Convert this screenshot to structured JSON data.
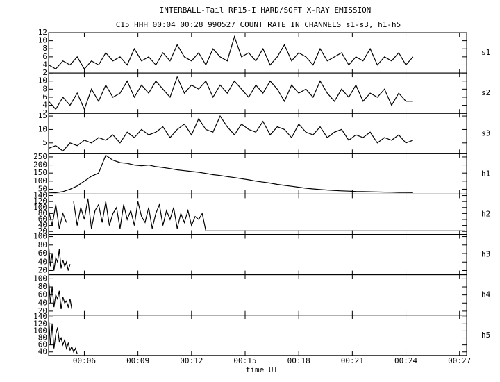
{
  "chart_data": {
    "type": "line",
    "title": "INTERBALL-Tail RF15-I HARD/SOFT X-RAY EMISSION",
    "subtitle": "C15 HHH 00:04 00:28 990527  COUNT RATE IN CHANNELS s1-s3, h1-h5",
    "xlabel": "time UT",
    "color": "#000000",
    "xlim": [
      4,
      27.4
    ],
    "xticks": [
      {
        "value": 6,
        "label": "00:06"
      },
      {
        "value": 9,
        "label": "00:09"
      },
      {
        "value": 12,
        "label": "00:12"
      },
      {
        "value": 15,
        "label": "00:15"
      },
      {
        "value": 18,
        "label": "00:18"
      },
      {
        "value": 21,
        "label": "00:21"
      },
      {
        "value": 24,
        "label": "00:24"
      },
      {
        "value": 27,
        "label": "00:27"
      }
    ],
    "panels": [
      {
        "name": "s1",
        "ylim": [
          2,
          12
        ],
        "yticks": [
          2,
          4,
          6,
          8,
          10,
          12
        ],
        "x": [
          4.0,
          4.4,
          4.8,
          5.2,
          5.6,
          6.0,
          6.4,
          6.8,
          7.2,
          7.6,
          8.0,
          8.4,
          8.8,
          9.2,
          9.6,
          10.0,
          10.4,
          10.8,
          11.2,
          11.6,
          12.0,
          12.4,
          12.8,
          13.2,
          13.6,
          14.0,
          14.4,
          14.8,
          15.2,
          15.6,
          16.0,
          16.4,
          16.8,
          17.2,
          17.6,
          18.0,
          18.4,
          18.8,
          19.2,
          19.6,
          20.0,
          20.4,
          20.8,
          21.2,
          21.6,
          22.0,
          22.4,
          22.8,
          23.2,
          23.6,
          24.0,
          24.4
        ],
        "values": [
          4,
          3,
          5,
          4,
          6,
          3,
          5,
          4,
          7,
          5,
          6,
          4,
          8,
          5,
          6,
          4,
          7,
          5,
          9,
          6,
          5,
          7,
          4,
          8,
          6,
          5,
          11,
          6,
          7,
          5,
          8,
          4,
          6,
          9,
          5,
          7,
          6,
          4,
          8,
          5,
          6,
          7,
          4,
          6,
          5,
          8,
          4,
          6,
          5,
          7,
          4,
          6
        ]
      },
      {
        "name": "s2",
        "ylim": [
          2,
          12
        ],
        "yticks": [
          2,
          4,
          6,
          8,
          10
        ],
        "x": [
          4.0,
          4.4,
          4.8,
          5.2,
          5.6,
          6.0,
          6.4,
          6.8,
          7.2,
          7.6,
          8.0,
          8.4,
          8.8,
          9.2,
          9.6,
          10.0,
          10.4,
          10.8,
          11.2,
          11.6,
          12.0,
          12.4,
          12.8,
          13.2,
          13.6,
          14.0,
          14.4,
          14.8,
          15.2,
          15.6,
          16.0,
          16.4,
          16.8,
          17.2,
          17.6,
          18.0,
          18.4,
          18.8,
          19.2,
          19.6,
          20.0,
          20.4,
          20.8,
          21.2,
          21.6,
          22.0,
          22.4,
          22.8,
          23.2,
          23.6,
          24.0,
          24.4
        ],
        "values": [
          5,
          3,
          6,
          4,
          7,
          3,
          8,
          5,
          9,
          6,
          7,
          10,
          6,
          9,
          7,
          10,
          8,
          6,
          11,
          7,
          9,
          8,
          10,
          6,
          9,
          7,
          10,
          8,
          6,
          9,
          7,
          10,
          8,
          5,
          9,
          7,
          8,
          6,
          10,
          7,
          5,
          8,
          6,
          9,
          5,
          7,
          6,
          8,
          4,
          7,
          5,
          5
        ]
      },
      {
        "name": "s3",
        "ylim": [
          1,
          16
        ],
        "yticks": [
          5,
          10,
          15
        ],
        "x": [
          4.0,
          4.4,
          4.8,
          5.2,
          5.6,
          6.0,
          6.4,
          6.8,
          7.2,
          7.6,
          8.0,
          8.4,
          8.8,
          9.2,
          9.6,
          10.0,
          10.4,
          10.8,
          11.2,
          11.6,
          12.0,
          12.4,
          12.8,
          13.2,
          13.6,
          14.0,
          14.4,
          14.8,
          15.2,
          15.6,
          16.0,
          16.4,
          16.8,
          17.2,
          17.6,
          18.0,
          18.4,
          18.8,
          19.2,
          19.6,
          20.0,
          20.4,
          20.8,
          21.2,
          21.6,
          22.0,
          22.4,
          22.8,
          23.2,
          23.6,
          24.0,
          24.4
        ],
        "values": [
          3,
          4,
          2,
          5,
          4,
          6,
          5,
          7,
          6,
          8,
          5,
          9,
          7,
          10,
          8,
          9,
          11,
          7,
          10,
          12,
          8,
          14,
          10,
          9,
          15,
          11,
          8,
          12,
          10,
          9,
          13,
          8,
          11,
          10,
          7,
          12,
          9,
          8,
          11,
          7,
          9,
          10,
          6,
          8,
          7,
          9,
          5,
          7,
          6,
          8,
          5,
          6
        ]
      },
      {
        "name": "h1",
        "ylim": [
          20,
          270
        ],
        "yticks": [
          50,
          100,
          150,
          200,
          250
        ],
        "x": [
          4.0,
          4.4,
          4.8,
          5.2,
          5.6,
          6.0,
          6.4,
          6.8,
          7.2,
          7.6,
          8.0,
          8.4,
          8.8,
          9.2,
          9.6,
          10.0,
          10.4,
          10.8,
          11.2,
          11.6,
          12.0,
          12.4,
          12.8,
          13.2,
          13.6,
          14.0,
          14.4,
          14.8,
          15.2,
          15.6,
          16.0,
          16.4,
          16.8,
          17.2,
          17.6,
          18.0,
          18.4,
          18.8,
          19.2,
          19.6,
          20.0,
          20.4,
          20.8,
          21.2,
          21.6,
          22.0,
          22.4,
          22.8,
          23.2,
          23.6,
          24.0,
          24.4
        ],
        "values": [
          30,
          28,
          35,
          50,
          70,
          100,
          130,
          150,
          260,
          230,
          215,
          210,
          200,
          195,
          200,
          190,
          185,
          178,
          170,
          165,
          160,
          155,
          148,
          140,
          135,
          128,
          122,
          115,
          108,
          100,
          94,
          88,
          80,
          74,
          68,
          62,
          56,
          52,
          48,
          45,
          42,
          40,
          38,
          36,
          35,
          34,
          33,
          32,
          31,
          30,
          30,
          29
        ]
      },
      {
        "name": "h2",
        "ylim": [
          10,
          145
        ],
        "yticks": [
          20,
          40,
          60,
          80,
          100,
          120,
          140
        ],
        "x": [
          4.0,
          4.2,
          4.4,
          4.6,
          4.8,
          5.0,
          5.2,
          5.4,
          5.6,
          5.8,
          6.0,
          6.2,
          6.4,
          6.6,
          6.8,
          7.0,
          7.2,
          7.4,
          7.6,
          7.8,
          8.0,
          8.2,
          8.4,
          8.6,
          8.8,
          9.0,
          9.2,
          9.4,
          9.6,
          9.8,
          10.0,
          10.2,
          10.4,
          10.6,
          10.8,
          11.0,
          11.2,
          11.4,
          11.6,
          11.8,
          12.0,
          12.2,
          12.4,
          12.6,
          12.8,
          27.3
        ],
        "values": [
          90,
          40,
          110,
          30,
          80,
          50,
          null,
          120,
          40,
          100,
          60,
          130,
          30,
          90,
          110,
          50,
          120,
          40,
          80,
          100,
          30,
          110,
          60,
          90,
          40,
          120,
          70,
          50,
          100,
          30,
          80,
          110,
          40,
          90,
          60,
          100,
          30,
          80,
          50,
          90,
          40,
          70,
          60,
          80,
          22,
          22
        ]
      },
      {
        "name": "h3",
        "ylim": [
          10,
          105
        ],
        "yticks": [
          20,
          40,
          60,
          80,
          100
        ],
        "x": [
          4.0,
          4.1,
          4.2,
          4.3,
          4.4,
          4.5,
          4.6,
          4.7,
          4.8,
          4.9,
          5.0,
          5.1,
          5.2
        ],
        "values": [
          80,
          30,
          60,
          20,
          50,
          40,
          70,
          25,
          45,
          30,
          40,
          20,
          35
        ]
      },
      {
        "name": "h4",
        "ylim": [
          10,
          110
        ],
        "yticks": [
          20,
          40,
          60,
          80,
          100
        ],
        "x": [
          4.0,
          4.1,
          4.2,
          4.3,
          4.4,
          4.5,
          4.6,
          4.7,
          4.8,
          4.9,
          5.0,
          5.1,
          5.2,
          5.3
        ],
        "values": [
          100,
          40,
          80,
          30,
          60,
          50,
          70,
          25,
          55,
          40,
          45,
          30,
          50,
          25
        ]
      },
      {
        "name": "h5",
        "ylim": [
          30,
          145
        ],
        "yticks": [
          40,
          60,
          80,
          100,
          120,
          140
        ],
        "x": [
          4.0,
          4.1,
          4.2,
          4.3,
          4.4,
          4.5,
          4.6,
          4.7,
          4.8,
          4.9,
          5.0,
          5.1,
          5.2,
          5.3,
          5.4,
          5.5,
          5.6
        ],
        "values": [
          140,
          60,
          120,
          50,
          90,
          110,
          70,
          80,
          60,
          75,
          50,
          65,
          45,
          55,
          40,
          50,
          35
        ]
      }
    ]
  }
}
